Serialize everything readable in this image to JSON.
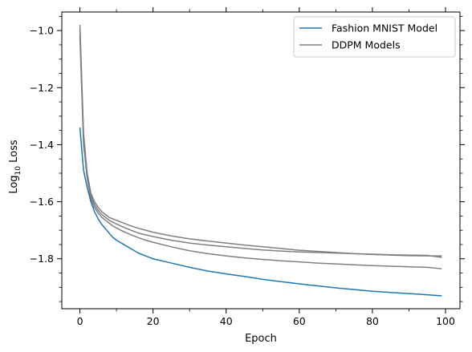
{
  "chart_data": {
    "type": "line",
    "title": "",
    "xlabel": "Epoch",
    "ylabel_base": "Log",
    "ylabel_sub": "10",
    "ylabel_rest": " Loss",
    "xlim": [
      -4.95,
      103.95
    ],
    "ylim": [
      -1.975,
      -0.935
    ],
    "x_ticks": [
      0,
      20,
      40,
      60,
      80,
      100
    ],
    "x_tick_labels": [
      "0",
      "20",
      "40",
      "60",
      "80",
      "100"
    ],
    "x_minor_ticks": [
      10,
      30,
      50,
      70,
      90
    ],
    "y_ticks": [
      -1.8,
      -1.6,
      -1.4,
      -1.2,
      -1.0
    ],
    "y_tick_labels": [
      "−1.8",
      "−1.6",
      "−1.4",
      "−1.2",
      "−1.0"
    ],
    "y_minor_ticks": [
      -1.95,
      -1.9,
      -1.85,
      -1.75,
      -1.7,
      -1.65,
      -1.55,
      -1.5,
      -1.45,
      -1.35,
      -1.3,
      -1.25,
      -1.15,
      -1.1,
      -1.05,
      -0.95
    ],
    "grid": false,
    "legend_position": "top-right",
    "legend": [
      {
        "label": "Fashion MNIST Model",
        "color": "#1f77b4"
      },
      {
        "label": "DDPM Models",
        "color": "#808080"
      }
    ],
    "series": [
      {
        "color": "#1f77b4",
        "x": [
          0,
          1,
          2,
          3,
          4,
          5,
          6,
          7,
          8,
          9,
          10,
          12,
          14,
          16,
          18,
          20,
          25,
          30,
          35,
          40,
          45,
          50,
          55,
          60,
          65,
          70,
          75,
          80,
          85,
          90,
          95,
          99
        ],
        "y": [
          -1.34,
          -1.49,
          -1.55,
          -1.6,
          -1.635,
          -1.66,
          -1.68,
          -1.695,
          -1.71,
          -1.725,
          -1.735,
          -1.75,
          -1.765,
          -1.78,
          -1.79,
          -1.8,
          -1.815,
          -1.83,
          -1.843,
          -1.853,
          -1.862,
          -1.872,
          -1.88,
          -1.888,
          -1.895,
          -1.902,
          -1.908,
          -1.914,
          -1.918,
          -1.922,
          -1.926,
          -1.93
        ]
      },
      {
        "color": "#808080",
        "x": [
          0,
          1,
          2,
          3,
          4,
          5,
          6,
          7,
          8,
          9,
          10,
          12,
          14,
          16,
          18,
          20,
          25,
          30,
          35,
          40,
          45,
          50,
          55,
          60,
          65,
          70,
          75,
          80,
          85,
          90,
          95,
          99
        ],
        "y": [
          -0.98,
          -1.36,
          -1.5,
          -1.57,
          -1.6,
          -1.62,
          -1.635,
          -1.645,
          -1.655,
          -1.66,
          -1.665,
          -1.675,
          -1.685,
          -1.693,
          -1.7,
          -1.707,
          -1.72,
          -1.73,
          -1.738,
          -1.745,
          -1.752,
          -1.758,
          -1.764,
          -1.77,
          -1.774,
          -1.778,
          -1.782,
          -1.785,
          -1.787,
          -1.789,
          -1.79,
          -1.79
        ]
      },
      {
        "color": "#808080",
        "x": [
          0,
          1,
          2,
          3,
          4,
          5,
          6,
          7,
          8,
          9,
          10,
          12,
          14,
          16,
          18,
          20,
          25,
          30,
          35,
          40,
          45,
          50,
          55,
          60,
          65,
          70,
          75,
          80,
          85,
          90,
          95,
          99
        ],
        "y": [
          -1.0,
          -1.38,
          -1.51,
          -1.58,
          -1.61,
          -1.63,
          -1.645,
          -1.655,
          -1.665,
          -1.672,
          -1.678,
          -1.69,
          -1.7,
          -1.71,
          -1.716,
          -1.722,
          -1.735,
          -1.745,
          -1.752,
          -1.758,
          -1.764,
          -1.769,
          -1.773,
          -1.776,
          -1.778,
          -1.78,
          -1.782,
          -1.784,
          -1.786,
          -1.787,
          -1.788,
          -1.795
        ]
      },
      {
        "color": "#808080",
        "x": [
          0,
          1,
          2,
          3,
          4,
          5,
          6,
          7,
          8,
          9,
          10,
          12,
          14,
          16,
          18,
          20,
          25,
          30,
          35,
          40,
          45,
          50,
          55,
          60,
          65,
          70,
          75,
          80,
          85,
          90,
          95,
          99
        ],
        "y": [
          -1.02,
          -1.4,
          -1.52,
          -1.59,
          -1.62,
          -1.64,
          -1.655,
          -1.665,
          -1.675,
          -1.685,
          -1.692,
          -1.705,
          -1.716,
          -1.726,
          -1.735,
          -1.742,
          -1.758,
          -1.772,
          -1.782,
          -1.79,
          -1.797,
          -1.802,
          -1.807,
          -1.811,
          -1.815,
          -1.818,
          -1.821,
          -1.824,
          -1.826,
          -1.828,
          -1.83,
          -1.835
        ]
      }
    ]
  }
}
